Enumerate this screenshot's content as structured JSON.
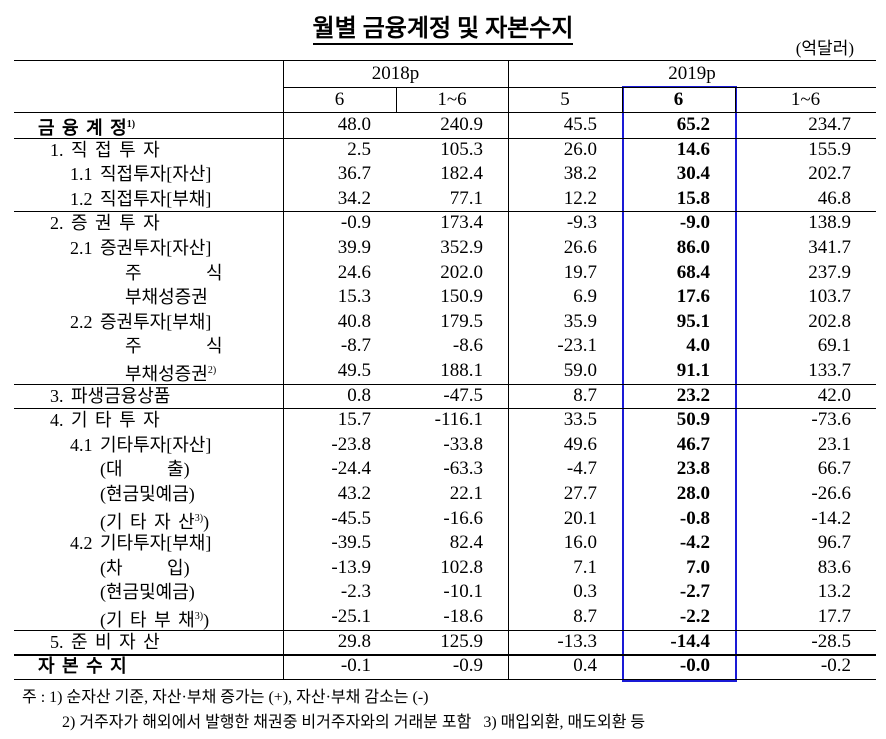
{
  "title": "월별 금융계정 및 자본수지",
  "unit": "(억달러)",
  "header": {
    "years": [
      "2018p",
      "2019p"
    ],
    "months": [
      "6",
      "1~6",
      "5",
      "6",
      "1~6"
    ]
  },
  "rows": [
    {
      "label": "금 융 계 정",
      "note": "1)",
      "values": [
        "48.0",
        "240.9",
        "45.5",
        "65.2",
        "234.7"
      ]
    },
    {
      "label": "1. 직 접 투 자",
      "values": [
        "2.5",
        "105.3",
        "26.0",
        "14.6",
        "155.9"
      ]
    },
    {
      "label": "1.1 직접투자[자산]",
      "values": [
        "36.7",
        "182.4",
        "38.2",
        "30.4",
        "202.7"
      ]
    },
    {
      "label": "1.2 직접투자[부채]",
      "values": [
        "34.2",
        "77.1",
        "12.2",
        "15.8",
        "46.8"
      ]
    },
    {
      "label": "2. 증 권 투 자",
      "values": [
        "-0.9",
        "173.4",
        "-9.3",
        "-9.0",
        "138.9"
      ]
    },
    {
      "label": "2.1 증권투자[자산]",
      "values": [
        "39.9",
        "352.9",
        "26.6",
        "86.0",
        "341.7"
      ]
    },
    {
      "label": "주 식",
      "values": [
        "24.6",
        "202.0",
        "19.7",
        "68.4",
        "237.9"
      ]
    },
    {
      "label": "부채성증권",
      "values": [
        "15.3",
        "150.9",
        "6.9",
        "17.6",
        "103.7"
      ]
    },
    {
      "label": "2.2 증권투자[부채]",
      "values": [
        "40.8",
        "179.5",
        "35.9",
        "95.1",
        "202.8"
      ]
    },
    {
      "label": "주 식",
      "values": [
        "-8.7",
        "-8.6",
        "-23.1",
        "4.0",
        "69.1"
      ]
    },
    {
      "label": "부채성증권",
      "note": "2)",
      "values": [
        "49.5",
        "188.1",
        "59.0",
        "91.1",
        "133.7"
      ]
    },
    {
      "label": "3. 파생금융상품",
      "values": [
        "0.8",
        "-47.5",
        "8.7",
        "23.2",
        "42.0"
      ]
    },
    {
      "label": "4. 기 타 투 자",
      "values": [
        "15.7",
        "-116.1",
        "33.5",
        "50.9",
        "-73.6"
      ]
    },
    {
      "label": "4.1 기타투자[자산]",
      "values": [
        "-23.8",
        "-33.8",
        "49.6",
        "46.7",
        "23.1"
      ]
    },
    {
      "label": "(대 출)",
      "values": [
        "-24.4",
        "-63.3",
        "-4.7",
        "23.8",
        "66.7"
      ]
    },
    {
      "label": "(현금및예금)",
      "values": [
        "43.2",
        "22.1",
        "27.7",
        "28.0",
        "-26.6"
      ]
    },
    {
      "label": "(기 타 자 산",
      "note": "3)",
      "label_end": ")",
      "values": [
        "-45.5",
        "-16.6",
        "20.1",
        "-0.8",
        "-14.2"
      ]
    },
    {
      "label": "4.2 기타투자[부채]",
      "values": [
        "-39.5",
        "82.4",
        "16.0",
        "-4.2",
        "96.7"
      ]
    },
    {
      "label": "(차 입)",
      "values": [
        "-13.9",
        "102.8",
        "7.1",
        "7.0",
        "83.6"
      ]
    },
    {
      "label": "(현금및예금)",
      "values": [
        "-2.3",
        "-10.1",
        "0.3",
        "-2.7",
        "13.2"
      ]
    },
    {
      "label": "(기 타 부 채",
      "note": "3)",
      "label_end": ")",
      "values": [
        "-25.1",
        "-18.6",
        "8.7",
        "-2.2",
        "17.7"
      ]
    },
    {
      "label": "5. 준 비 자 산",
      "values": [
        "29.8",
        "125.9",
        "-13.3",
        "-14.4",
        "-28.5"
      ]
    },
    {
      "label": "자 본 수 지",
      "values": [
        "-0.1",
        "-0.9",
        "0.4",
        "-0.0",
        "-0.2"
      ]
    }
  ],
  "notes": [
    "주 : 1) 순자산 기준, 자산·부채 증가는 (+), 자산·부채 감소는 (-)",
    "2) 거주자가 해외에서 발행한 채권중 비거주자와의 거래분 포함   3) 매입외환, 매도외환 등"
  ]
}
